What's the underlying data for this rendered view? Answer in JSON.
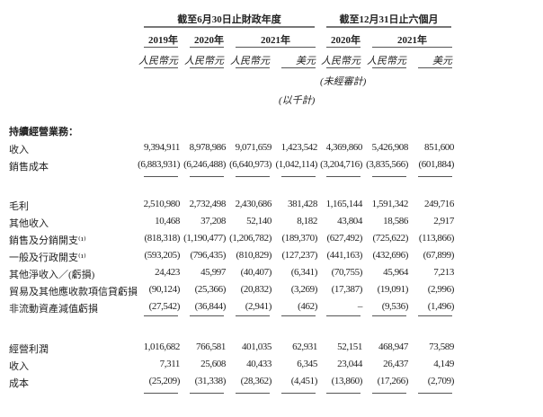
{
  "header": {
    "group_fiscal": "截至6月30日止財政年度",
    "group_six_months": "截至12月31日止六個月",
    "years": [
      "2019年",
      "2020年",
      "2021年",
      "2020年",
      "2021年"
    ],
    "currencies": [
      "人民幣元",
      "人民幣元",
      "人民幣元",
      "美元",
      "人民幣元",
      "人民幣元",
      "美元"
    ],
    "unaudited": "(未經審計)",
    "unit": "(以千計)"
  },
  "section_title": "持續經營業務：",
  "rows": [
    {
      "label": "收入",
      "values": [
        "9,394,911",
        "8,978,986",
        "9,071,659",
        "1,423,542",
        "4,369,860",
        "5,426,908",
        "851,600"
      ]
    },
    {
      "label": "銷售成本",
      "values": [
        "(6,883,931)",
        "(6,246,488)",
        "(6,640,973)",
        "(1,042,114)",
        "(3,204,716)",
        "(3,835,566)",
        "(601,884)"
      ]
    },
    {
      "label": "毛利",
      "values": [
        "2,510,980",
        "2,732,498",
        "2,430,686",
        "381,428",
        "1,165,144",
        "1,591,342",
        "249,716"
      ]
    },
    {
      "label": "其他收入",
      "values": [
        "10,468",
        "37,208",
        "52,140",
        "8,182",
        "43,804",
        "18,586",
        "2,917"
      ]
    },
    {
      "label": "銷售及分銷開支⁽¹⁾",
      "values": [
        "(818,318)",
        "(1,190,477)",
        "(1,206,782)",
        "(189,370)",
        "(627,492)",
        "(725,622)",
        "(113,866)"
      ]
    },
    {
      "label": "一般及行政開支⁽¹⁾",
      "values": [
        "(593,205)",
        "(796,435)",
        "(810,829)",
        "(127,237)",
        "(441,163)",
        "(432,696)",
        "(67,899)"
      ]
    },
    {
      "label": "其他淨收入／(虧損)",
      "values": [
        "24,423",
        "45,997",
        "(40,407)",
        "(6,341)",
        "(70,755)",
        "45,964",
        "7,213"
      ]
    },
    {
      "label": "貿易及其他應收款項信貸虧損",
      "values": [
        "(90,124)",
        "(25,366)",
        "(20,832)",
        "(3,269)",
        "(17,387)",
        "(19,091)",
        "(2,996)"
      ]
    },
    {
      "label": "非流動資產減值虧損",
      "values": [
        "(27,542)",
        "(36,844)",
        "(2,941)",
        "(462)",
        "–",
        "(9,536)",
        "(1,496)"
      ]
    },
    {
      "label": "經營利潤",
      "values": [
        "1,016,682",
        "766,581",
        "401,035",
        "62,931",
        "52,151",
        "468,947",
        "73,589"
      ]
    },
    {
      "label": "收入",
      "values": [
        "7,311",
        "25,608",
        "40,433",
        "6,345",
        "23,044",
        "26,437",
        "4,149"
      ]
    },
    {
      "label": "成本",
      "values": [
        "(25,209)",
        "(31,338)",
        "(28,362)",
        "(4,451)",
        "(13,860)",
        "(17,266)",
        "(2,709)"
      ]
    }
  ]
}
